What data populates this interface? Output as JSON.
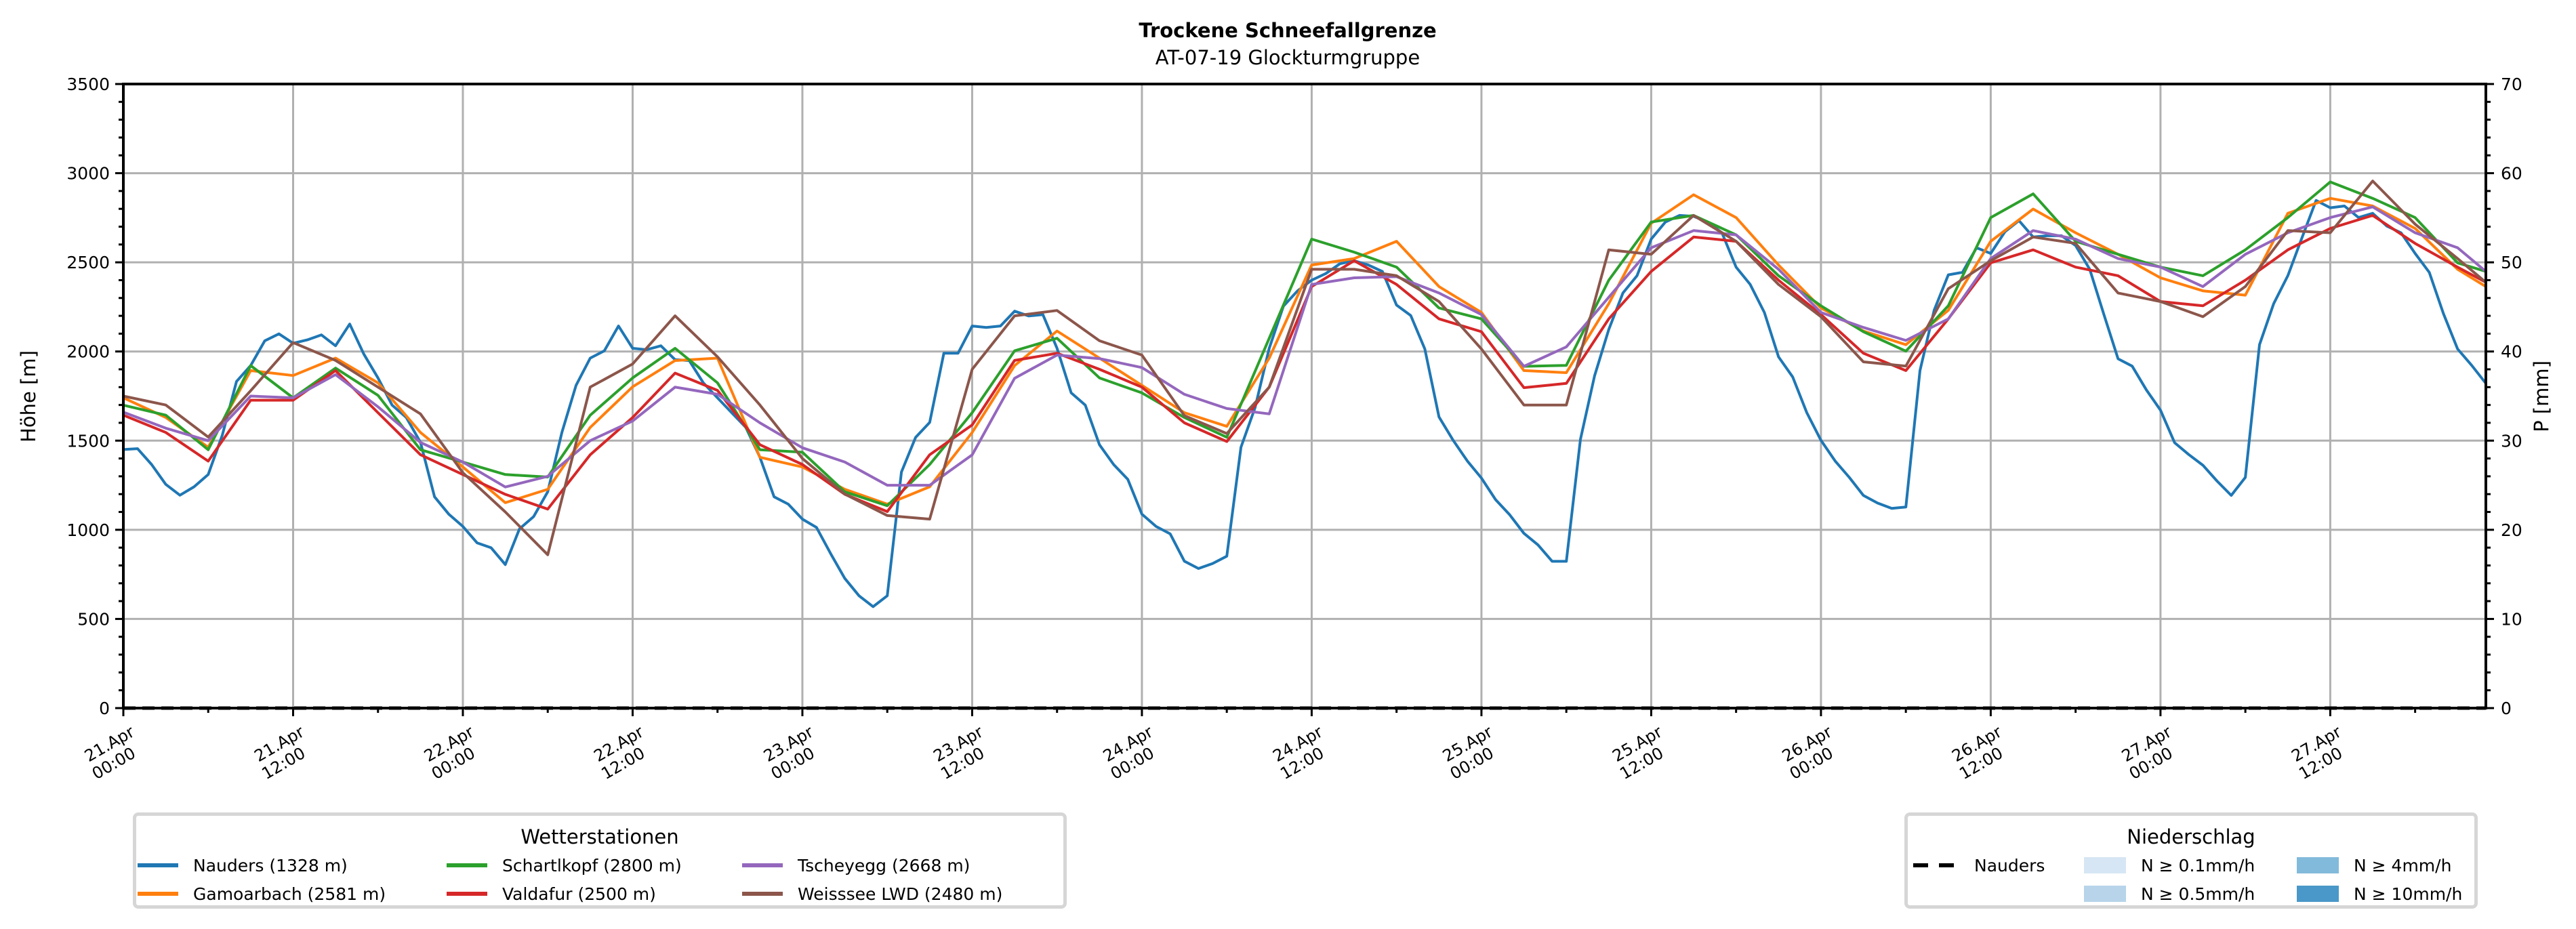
{
  "chart_data": {
    "type": "line",
    "title": "Trockene Schneefallgrenze",
    "subtitle": "AT-07-19 Glockturmgruppe",
    "ylabel": "Höhe [m]",
    "ylabel_right": "P [mm]",
    "ylim": [
      0,
      3500
    ],
    "ylim_right": [
      0,
      70
    ],
    "yticks": [
      0,
      500,
      1000,
      1500,
      2000,
      2500,
      3000,
      3500
    ],
    "yticks_right": [
      0,
      10,
      20,
      30,
      40,
      50,
      60,
      70
    ],
    "xlim_hours": [
      0,
      167
    ],
    "grid": true,
    "xticks": [
      {
        "h": 0,
        "l1": "21.Apr",
        "l2": "00:00"
      },
      {
        "h": 12,
        "l1": "21.Apr",
        "l2": "12:00"
      },
      {
        "h": 24,
        "l1": "22.Apr",
        "l2": "00:00"
      },
      {
        "h": 36,
        "l1": "22.Apr",
        "l2": "12:00"
      },
      {
        "h": 48,
        "l1": "23.Apr",
        "l2": "00:00"
      },
      {
        "h": 60,
        "l1": "23.Apr",
        "l2": "12:00"
      },
      {
        "h": 72,
        "l1": "24.Apr",
        "l2": "00:00"
      },
      {
        "h": 84,
        "l1": "24.Apr",
        "l2": "12:00"
      },
      {
        "h": 96,
        "l1": "25.Apr",
        "l2": "00:00"
      },
      {
        "h": 108,
        "l1": "25.Apr",
        "l2": "12:00"
      },
      {
        "h": 120,
        "l1": "26.Apr",
        "l2": "00:00"
      },
      {
        "h": 132,
        "l1": "26.Apr",
        "l2": "12:00"
      },
      {
        "h": 144,
        "l1": "27.Apr",
        "l2": "00:00"
      },
      {
        "h": 156,
        "l1": "27.Apr",
        "l2": "12:00"
      }
    ],
    "x_hours_3h": [
      0,
      3,
      6,
      9,
      12,
      15,
      18,
      21,
      24,
      27,
      30,
      33,
      36,
      39,
      42,
      45,
      48,
      51,
      54,
      57,
      60,
      63,
      66,
      69,
      72,
      75,
      78,
      81,
      84,
      87,
      90,
      93,
      96,
      99,
      102,
      105,
      108,
      111,
      114,
      117,
      120,
      123,
      126,
      129,
      132,
      135,
      138,
      141,
      144,
      147,
      150,
      153,
      156,
      159,
      162,
      165,
      167
    ],
    "series": [
      {
        "name": "Nauders (1328 m)",
        "color": "#1f77b4",
        "hourly": true,
        "values": [
          1450,
          1455,
          1366,
          1255,
          1194,
          1241,
          1310,
          1532,
          1832,
          1921,
          2060,
          2099,
          2046,
          2065,
          2093,
          2032,
          2154,
          1985,
          1852,
          1699,
          1630,
          1491,
          1185,
          1088,
          1019,
          927,
          899,
          805,
          1005,
          1074,
          1213,
          1546,
          1810,
          1963,
          2004,
          2143,
          2018,
          2010,
          2032,
          1954,
          1949,
          1824,
          1740,
          1657,
          1574,
          1407,
          1185,
          1144,
          1060,
          1013,
          866,
          727,
          630,
          569,
          630,
          1324,
          1518,
          1602,
          1990,
          1990,
          2143,
          2135,
          2143,
          2226,
          2199,
          2207,
          2018,
          1768,
          1699,
          1477,
          1366,
          1283,
          1088,
          1019,
          977,
          824,
          783,
          811,
          852,
          1463,
          1685,
          2018,
          2254,
          2340,
          2400,
          2437,
          2492,
          2509,
          2485,
          2449,
          2260,
          2202,
          2014,
          1633,
          1502,
          1386,
          1290,
          1169,
          1084,
          980,
          915,
          823,
          823,
          1507,
          1864,
          2123,
          2328,
          2425,
          2630,
          2726,
          2763,
          2758,
          2726,
          2666,
          2473,
          2376,
          2219,
          1970,
          1857,
          1657,
          1502,
          1386,
          1294,
          1193,
          1150,
          1120,
          1128,
          1893,
          2231,
          2430,
          2444,
          2582,
          2550,
          2671,
          2734,
          2642,
          2649,
          2649,
          2594,
          2461,
          2207,
          1959,
          1918,
          1785,
          1671,
          1488,
          1422,
          1362,
          1273,
          1193,
          1294,
          2038,
          2268,
          2425,
          2637,
          2847,
          2806,
          2816,
          2751,
          2775,
          2703,
          2666,
          2550,
          2444,
          2212,
          2014,
          1922,
          1821
        ]
      },
      {
        "name": "Gamoarbach (2581 m)",
        "color": "#ff7f0e",
        "values": [
          1740,
          1630,
          1463,
          1893,
          1865,
          1963,
          1824,
          1546,
          1352,
          1152,
          1227,
          1574,
          1802,
          1949,
          1963,
          1407,
          1352,
          1227,
          1144,
          1241,
          1546,
          1921,
          2115,
          1963,
          1810,
          1657,
          1580,
          1963,
          2485,
          2521,
          2618,
          2364,
          2219,
          1893,
          1881,
          2268,
          2719,
          2879,
          2751,
          2485,
          2244,
          2115,
          2038,
          2231,
          2618,
          2799,
          2666,
          2545,
          2413,
          2340,
          2316,
          2775,
          2859,
          2816,
          2690,
          2461,
          2364
        ]
      },
      {
        "name": "Schartlkopf (2800 m)",
        "color": "#2ca02c",
        "values": [
          1699,
          1643,
          1449,
          1921,
          1740,
          1907,
          1754,
          1449,
          1380,
          1310,
          1296,
          1643,
          1852,
          2018,
          1824,
          1449,
          1435,
          1213,
          1135,
          1366,
          1657,
          2004,
          2074,
          1852,
          1768,
          1630,
          1519,
          2074,
          2630,
          2557,
          2473,
          2244,
          2183,
          1917,
          1922,
          2400,
          2726,
          2763,
          2654,
          2425,
          2256,
          2111,
          2002,
          2256,
          2751,
          2884,
          2618,
          2545,
          2473,
          2425,
          2570,
          2751,
          2951,
          2859,
          2751,
          2497,
          2449
        ]
      },
      {
        "name": "Valdafur (2500 m)",
        "color": "#d62728",
        "values": [
          1643,
          1546,
          1385,
          1727,
          1727,
          1893,
          1657,
          1421,
          1310,
          1199,
          1116,
          1421,
          1630,
          1879,
          1782,
          1477,
          1366,
          1199,
          1102,
          1421,
          1588,
          1950,
          1990,
          1900,
          1800,
          1600,
          1495,
          1800,
          2364,
          2509,
          2376,
          2183,
          2111,
          1797,
          1821,
          2183,
          2449,
          2642,
          2618,
          2400,
          2207,
          1990,
          1893,
          2183,
          2497,
          2570,
          2473,
          2425,
          2280,
          2256,
          2400,
          2570,
          2690,
          2763,
          2606,
          2473,
          2388
        ]
      },
      {
        "name": "Tscheyegg (2668 m)",
        "color": "#9467bd",
        "values": [
          1660,
          1570,
          1500,
          1750,
          1740,
          1870,
          1690,
          1490,
          1380,
          1240,
          1300,
          1500,
          1610,
          1800,
          1760,
          1600,
          1460,
          1380,
          1250,
          1250,
          1420,
          1850,
          1980,
          1960,
          1910,
          1760,
          1680,
          1650,
          2376,
          2413,
          2420,
          2328,
          2207,
          1917,
          2026,
          2304,
          2582,
          2678,
          2654,
          2461,
          2219,
          2135,
          2062,
          2183,
          2521,
          2678,
          2630,
          2521,
          2473,
          2364,
          2545,
          2666,
          2751,
          2811,
          2666,
          2582,
          2449
        ]
      },
      {
        "name": "Weisssee LWD (2480 m)",
        "color": "#8c564b",
        "values": [
          1750,
          1700,
          1520,
          1780,
          2050,
          1950,
          1800,
          1650,
          1320,
          1100,
          860,
          1800,
          1930,
          2200,
          1970,
          1700,
          1400,
          1200,
          1080,
          1060,
          1900,
          2200,
          2230,
          2060,
          1980,
          1640,
          1540,
          1800,
          2461,
          2461,
          2425,
          2280,
          2014,
          1700,
          1700,
          2570,
          2545,
          2763,
          2618,
          2376,
          2195,
          1942,
          1918,
          2352,
          2509,
          2642,
          2606,
          2328,
          2280,
          2195,
          2364,
          2678,
          2666,
          2956,
          2714,
          2521,
          2388
        ]
      }
    ],
    "precip_series": {
      "name": "Nauders",
      "values_mm": [
        0
      ],
      "color": "#000000"
    },
    "legend_stations": {
      "title": "Wetterstationen",
      "placement": "bottom-left"
    },
    "legend_precip": {
      "title": "Niederschlag",
      "placement": "bottom-right",
      "line_label": "Nauders",
      "classes": [
        {
          "label": "N ≥ 0.1mm/h",
          "color": "#d6e6f4"
        },
        {
          "label": "N ≥ 0.5mm/h",
          "color": "#b7d4ea"
        },
        {
          "label": "N ≥ 4mm/h",
          "color": "#82badb"
        },
        {
          "label": "N ≥ 10mm/h",
          "color": "#4a98c9"
        }
      ]
    }
  }
}
